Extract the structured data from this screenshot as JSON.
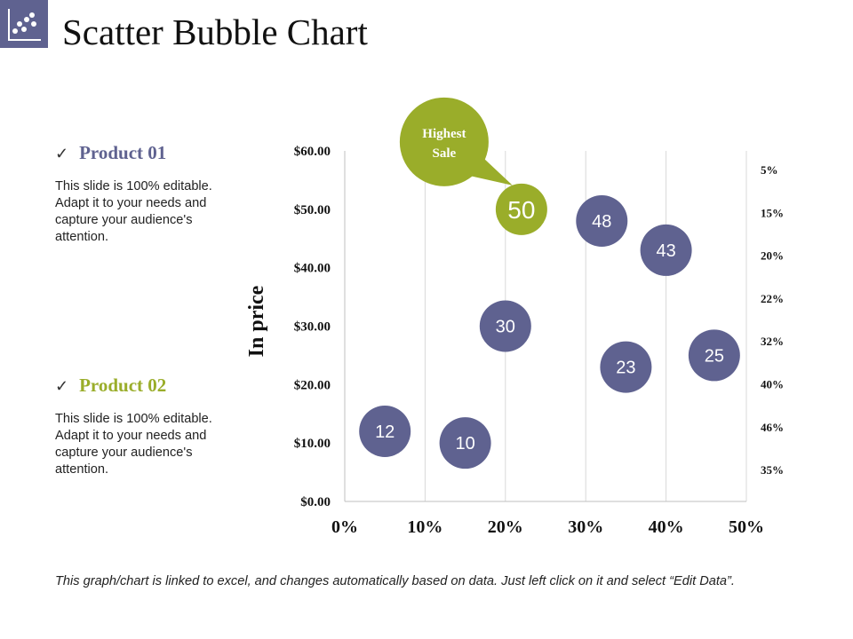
{
  "page": {
    "title": "Scatter Bubble Chart",
    "title_icon": "scatter-chart-icon",
    "footer": "This graph/chart is linked to excel, and changes automatically based on data. Just left click on it and select “Edit Data”."
  },
  "products": [
    {
      "name": "Product 01",
      "color": "#5f6290",
      "check_icon": "checkmark-icon",
      "description": "This slide is 100% editable. Adapt it to your needs and capture your audience's attention."
    },
    {
      "name": "Product 02",
      "color": "#9aad2a",
      "check_icon": "checkmark-icon",
      "description": "This slide is 100% editable. Adapt it to your needs and capture your audience's attention."
    }
  ],
  "colors": {
    "product01": "#5f6290",
    "product02": "#9aad2a",
    "gridline": "#d9d9d9",
    "axis": "#bfbfbf"
  },
  "chart_data": {
    "type": "scatter",
    "title": "Scatter Bubble Chart",
    "ylabel": "In price",
    "xlabel": "",
    "xlim": [
      0,
      50
    ],
    "ylim": [
      0,
      60
    ],
    "x_ticks": [
      "0%",
      "10%",
      "20%",
      "30%",
      "40%",
      "50%"
    ],
    "y_ticks": [
      "$0.00",
      "$10.00",
      "$20.00",
      "$30.00",
      "$40.00",
      "$50.00",
      "$60.00"
    ],
    "right_axis_labels": [
      "5%",
      "15%",
      "20%",
      "22%",
      "32%",
      "40%",
      "46%",
      "35%"
    ],
    "grid": "vertical",
    "series": [
      {
        "name": "Product 01",
        "color": "#5f6290",
        "points": [
          {
            "x": 5,
            "y": 12,
            "label": "12"
          },
          {
            "x": 15,
            "y": 10,
            "label": "10"
          },
          {
            "x": 20,
            "y": 30,
            "label": "30"
          },
          {
            "x": 32,
            "y": 48,
            "label": "48"
          },
          {
            "x": 35,
            "y": 23,
            "label": "23"
          },
          {
            "x": 40,
            "y": 43,
            "label": "43"
          },
          {
            "x": 46,
            "y": 25,
            "label": "25"
          }
        ]
      },
      {
        "name": "Product 02",
        "color": "#9aad2a",
        "points": [
          {
            "x": 22,
            "y": 50,
            "label": "50"
          }
        ]
      }
    ],
    "annotation": {
      "text_line1": "Highest",
      "text_line2": "Sale",
      "target_label": "50"
    }
  }
}
